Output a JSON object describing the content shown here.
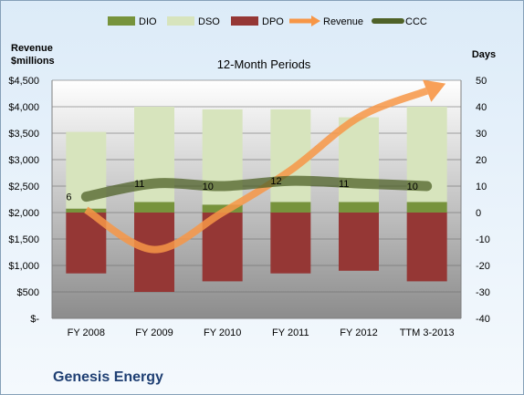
{
  "chart_data": {
    "type": "bar",
    "title": "12-Month Periods",
    "company": "Genesis Energy",
    "ylabel_left": [
      "Revenue",
      "$millions"
    ],
    "ylabel_right": "Days",
    "categories": [
      "FY 2008",
      "FY 2009",
      "FY 2010",
      "FY 2011",
      "FY 2012",
      "TTM 3-2013"
    ],
    "left_axis": {
      "min": 0,
      "max": 4500,
      "step": 500,
      "ticks": [
        "$-",
        "$500",
        "$1,000",
        "$1,500",
        "$2,000",
        "$2,500",
        "$3,000",
        "$3,500",
        "$4,000",
        "$4,500"
      ]
    },
    "right_axis": {
      "min": -40,
      "max": 50,
      "step": 10
    },
    "legend": [
      "DIO",
      "DSO",
      "DPO",
      "Revenue",
      "CCC"
    ],
    "legend_position": "top",
    "series": [
      {
        "name": "DIO",
        "axis": "right",
        "values": [
          1.5,
          4,
          3,
          4,
          4,
          4
        ]
      },
      {
        "name": "DSO",
        "axis": "right",
        "values": [
          29,
          36,
          36,
          35,
          32,
          36
        ]
      },
      {
        "name": "DPO",
        "axis": "right",
        "values": [
          -23,
          -30,
          -26,
          -23,
          -22,
          -26
        ]
      },
      {
        "name": "Revenue",
        "axis": "left",
        "values": [
          2050,
          1300,
          2000,
          2800,
          3800,
          4300
        ]
      },
      {
        "name": "CCC",
        "axis": "right",
        "values": [
          6,
          11,
          10,
          12,
          11,
          10
        ]
      }
    ],
    "ccc_labels": [
      "6",
      "11",
      "10",
      "12",
      "11",
      "10"
    ],
    "colors": {
      "DIO": "#77933c",
      "DSO": "#d7e4bd",
      "DPO": "#953735",
      "Revenue": "#f79646",
      "CCC": "#4f6228"
    },
    "grid": true
  }
}
